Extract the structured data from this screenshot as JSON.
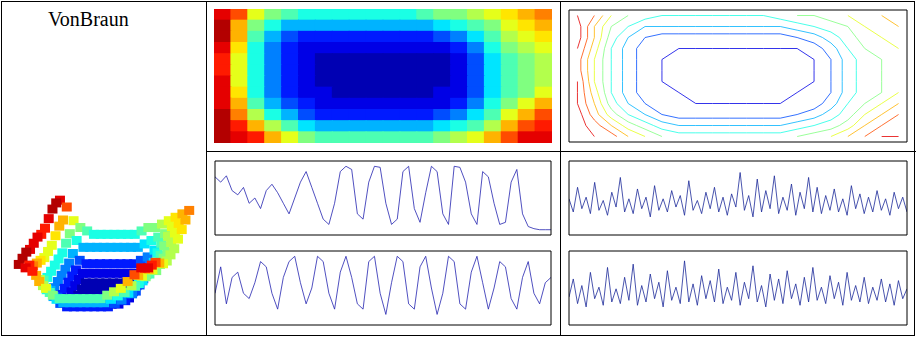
{
  "title": "VonBraun",
  "color_range": [
    0,
    10
  ],
  "cells": [
    [
      9,
      8,
      6,
      5,
      4.5,
      4,
      4,
      4,
      4,
      4,
      4,
      4,
      4.5,
      5,
      5,
      5.5,
      6,
      6.5,
      7,
      7.5
    ],
    [
      9.5,
      7,
      5,
      4,
      3,
      3,
      3,
      3,
      3,
      3,
      3,
      3,
      3,
      3.5,
      4,
      4.5,
      5,
      6,
      6.5,
      7
    ],
    [
      9.5,
      7,
      4.5,
      3,
      2,
      1.5,
      1.5,
      1.5,
      1.5,
      1.5,
      1.5,
      1.5,
      1.5,
      2,
      2.5,
      3.5,
      4.5,
      5.5,
      6,
      6.5
    ],
    [
      9,
      6.5,
      4,
      2.5,
      1.5,
      1,
      1,
      1,
      1,
      1,
      1,
      1,
      1,
      1,
      1.5,
      2.5,
      4,
      5,
      5.5,
      6
    ],
    [
      8.5,
      6,
      4,
      2.5,
      1.5,
      1,
      0.5,
      0.5,
      0.5,
      0.5,
      0.5,
      0.5,
      0.5,
      0.5,
      1,
      2,
      3.5,
      4.5,
      5,
      5.5
    ],
    [
      8.5,
      6,
      4,
      2.5,
      1.5,
      1,
      0.5,
      0.5,
      0.5,
      0.5,
      0.5,
      0.5,
      0.5,
      0.5,
      1,
      2,
      3.5,
      4.5,
      5,
      5.5
    ],
    [
      9,
      6,
      4,
      2.5,
      1.5,
      1,
      0.5,
      0.5,
      0.5,
      0.5,
      0.5,
      0.5,
      0.5,
      0.5,
      1,
      2,
      3.5,
      4.5,
      5,
      5.5
    ],
    [
      9,
      6.5,
      4,
      2.5,
      1.5,
      1,
      1,
      0.5,
      0.5,
      0.5,
      0.5,
      0.5,
      0.5,
      1,
      1,
      2,
      3.5,
      4.5,
      5,
      6
    ],
    [
      9,
      7,
      4.5,
      3,
      2,
      1.5,
      1,
      1,
      1,
      1,
      1,
      1,
      1,
      1,
      1.5,
      2.5,
      4,
      5,
      6,
      7
    ],
    [
      9.5,
      7.5,
      5.5,
      4,
      3,
      2,
      1.5,
      1.5,
      1.5,
      1.5,
      1.5,
      1.5,
      1.5,
      2,
      2.5,
      3.5,
      4.5,
      6,
      7,
      8
    ],
    [
      9.5,
      8.5,
      7,
      5.5,
      4.5,
      3.5,
      3,
      3,
      3,
      3,
      3,
      3,
      3,
      3.5,
      4,
      4.5,
      5.5,
      7,
      8,
      8.5
    ],
    [
      9.5,
      9,
      8.5,
      7,
      6,
      5,
      4.5,
      4.5,
      4.5,
      4.5,
      4.5,
      4.5,
      4.5,
      5,
      5.5,
      6,
      7,
      8,
      9,
      9
    ]
  ],
  "chart_data": [
    {
      "type": "surface",
      "tick_labels": false
    },
    {
      "type": "heatmap",
      "xlim": [
        0,
        20
      ],
      "ylim": [
        0,
        12
      ],
      "tick_labels": false
    },
    {
      "type": "contour",
      "xlim": [
        0,
        20
      ],
      "ylim": [
        0,
        12
      ],
      "contour_levels": [
        1,
        2,
        3,
        4,
        5,
        6,
        7,
        8,
        9
      ],
      "tick_labels": false
    },
    {
      "type": "line",
      "xlim": [
        0,
        59
      ],
      "ylim": [
        0,
        700
      ],
      "color": "#2323b0",
      "tick_labels": false,
      "values": [
        550,
        500,
        560,
        420,
        380,
        450,
        300,
        350,
        250,
        420,
        480,
        400,
        300,
        200,
        350,
        500,
        600,
        450,
        300,
        150,
        100,
        300,
        600,
        650,
        620,
        200,
        150,
        500,
        650,
        640,
        300,
        100,
        150,
        600,
        650,
        250,
        120,
        400,
        650,
        600,
        200,
        100,
        650,
        640,
        500,
        200,
        100,
        600,
        550,
        300,
        100,
        120,
        500,
        620,
        200,
        80,
        60,
        50,
        50,
        50
      ]
    },
    {
      "type": "line",
      "xlim": [
        0,
        59
      ],
      "ylim": [
        0,
        700
      ],
      "color": "#2323b0",
      "tick_labels": false,
      "values": [
        300,
        550,
        200,
        450,
        500,
        300,
        250,
        400,
        600,
        550,
        300,
        150,
        450,
        600,
        650,
        400,
        200,
        350,
        650,
        600,
        300,
        150,
        500,
        650,
        450,
        200,
        150,
        600,
        650,
        300,
        100,
        400,
        650,
        600,
        200,
        150,
        550,
        650,
        350,
        100,
        300,
        650,
        600,
        200,
        150,
        500,
        650,
        400,
        150,
        350,
        600,
        550,
        250,
        150,
        450,
        600,
        300,
        200,
        400,
        450
      ]
    },
    {
      "type": "line",
      "xlim": [
        0,
        79
      ],
      "ylim": [
        -2000,
        2500
      ],
      "color": "#1c2a99",
      "tick_labels": false,
      "values": [
        200,
        -600,
        900,
        -400,
        300,
        -700,
        1200,
        -500,
        100,
        -800,
        600,
        -300,
        1500,
        -600,
        200,
        -700,
        800,
        -400,
        300,
        -900,
        1000,
        -500,
        200,
        -600,
        700,
        -300,
        400,
        -800,
        1300,
        -500,
        100,
        -700,
        600,
        -400,
        900,
        -600,
        300,
        -800,
        500,
        -300,
        1800,
        -500,
        400,
        -900,
        1400,
        -600,
        700,
        -400,
        1600,
        -700,
        300,
        -500,
        1100,
        -800,
        600,
        -400,
        1500,
        -600,
        900,
        -700,
        400,
        -500,
        800,
        -600,
        200,
        -800,
        1000,
        -400,
        500,
        -700,
        300,
        -600,
        700,
        -500,
        200,
        -800,
        600,
        -400,
        300,
        -600
      ]
    },
    {
      "type": "line",
      "xlim": [
        0,
        79
      ],
      "ylim": [
        -2000,
        2500
      ],
      "color": "#1c2a99",
      "tick_labels": false,
      "values": [
        -300,
        800,
        -700,
        400,
        -900,
        1200,
        -400,
        300,
        -800,
        1500,
        -600,
        200,
        -700,
        900,
        -500,
        1700,
        -800,
        400,
        -600,
        1100,
        -400,
        600,
        -900,
        1300,
        -500,
        300,
        -700,
        1900,
        -600,
        500,
        -800,
        1000,
        -400,
        700,
        -600,
        1400,
        -700,
        300,
        -500,
        1200,
        -800,
        600,
        -400,
        1600,
        -600,
        400,
        -900,
        1100,
        -500,
        800,
        -700,
        1300,
        -400,
        500,
        -800,
        900,
        -600,
        1500,
        -500,
        300,
        -700,
        1000,
        -400,
        600,
        -800,
        1200,
        -500,
        400,
        -600,
        900,
        -700,
        300,
        -500,
        800,
        -600,
        500,
        -800,
        700,
        -400,
        200
      ]
    }
  ]
}
